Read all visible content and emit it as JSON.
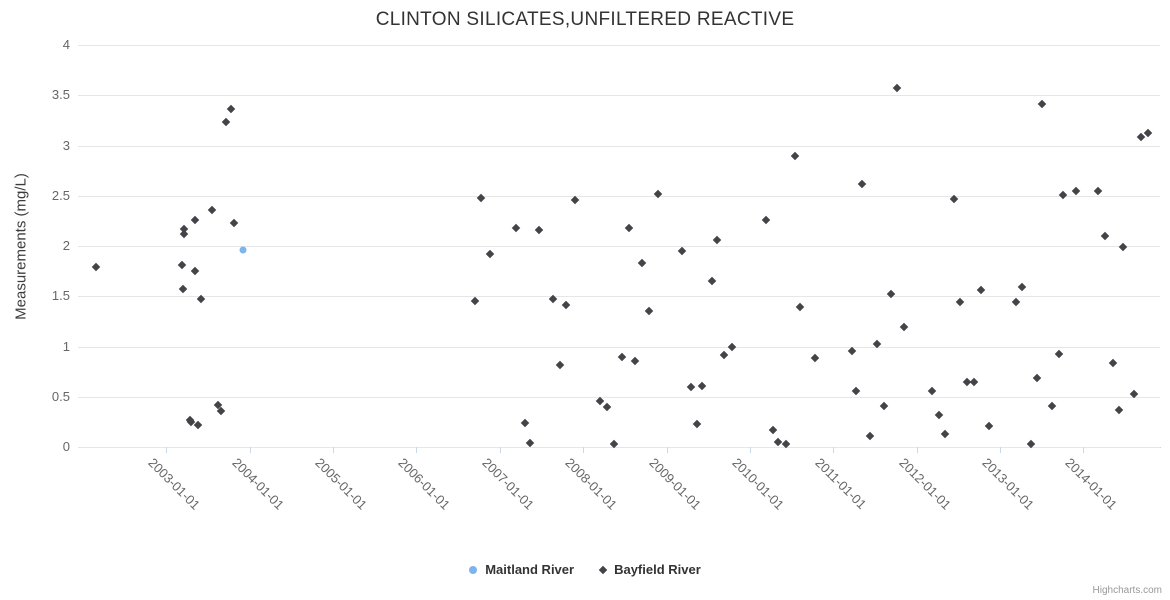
{
  "credit": "Highcharts.com",
  "colors": {
    "background": "#ffffff",
    "title_text": "#333333",
    "axis_title_text": "#3c3c3c",
    "tick_label_text": "#666666",
    "gridline": "#e6e6e6",
    "axis_line": "#ccd6eb",
    "legend_text": "#333333",
    "credit_text": "#999999",
    "maitland_series": "#7cb5ec",
    "bayfield_series": "#434348"
  },
  "chart_data": {
    "type": "scatter",
    "title": "CLINTON SILICATES,UNFILTERED REACTIVE",
    "xlabel": "",
    "ylabel": "Measurements (mg/L)",
    "grid": "horizontal",
    "legend_position": "bottom-center",
    "x_axis": {
      "type": "date",
      "units": "decimal_year",
      "min": 2001.94,
      "max": 2014.92,
      "tick_positions": [
        2003,
        2004,
        2005,
        2006,
        2007,
        2008,
        2009,
        2010,
        2011,
        2012,
        2013,
        2014
      ],
      "tick_labels": [
        "2003-01-01",
        "2004-01-01",
        "2005-01-01",
        "2006-01-01",
        "2007-01-01",
        "2008-01-01",
        "2009-01-01",
        "2010-01-01",
        "2011-01-01",
        "2012-01-01",
        "2013-01-01",
        "2014-01-01"
      ],
      "label_rotation_deg": 45
    },
    "y_axis": {
      "min": 0,
      "max": 4,
      "tick_values": [
        0,
        0.5,
        1,
        1.5,
        2,
        2.5,
        3,
        3.5,
        4
      ],
      "tick_labels": [
        "0",
        "0.5",
        "1",
        "1.5",
        "2",
        "2.5",
        "3",
        "3.5",
        "4"
      ]
    },
    "series": [
      {
        "name": "Maitland River",
        "color": "#7cb5ec",
        "marker": "circle",
        "points": [
          [
            2003.92,
            1.96
          ]
        ]
      },
      {
        "name": "Bayfield River",
        "color": "#434348",
        "marker": "diamond",
        "points": [
          [
            2002.15,
            1.79
          ],
          [
            2003.19,
            1.81
          ],
          [
            2003.2,
            1.57
          ],
          [
            2003.21,
            2.17
          ],
          [
            2003.21,
            2.12
          ],
          [
            2003.28,
            0.27
          ],
          [
            2003.3,
            0.25
          ],
          [
            2003.34,
            2.26
          ],
          [
            2003.34,
            1.75
          ],
          [
            2003.38,
            0.22
          ],
          [
            2003.42,
            1.47
          ],
          [
            2003.55,
            2.36
          ],
          [
            2003.62,
            0.42
          ],
          [
            2003.66,
            0.36
          ],
          [
            2003.72,
            3.23
          ],
          [
            2003.78,
            3.36
          ],
          [
            2003.81,
            2.23
          ],
          [
            2006.7,
            1.45
          ],
          [
            2006.78,
            2.48
          ],
          [
            2006.88,
            1.92
          ],
          [
            2007.2,
            2.18
          ],
          [
            2007.3,
            0.24
          ],
          [
            2007.36,
            0.04
          ],
          [
            2007.47,
            2.16
          ],
          [
            2007.64,
            1.47
          ],
          [
            2007.72,
            0.82
          ],
          [
            2007.79,
            1.41
          ],
          [
            2007.9,
            2.46
          ],
          [
            2008.2,
            0.46
          ],
          [
            2008.29,
            0.4
          ],
          [
            2008.37,
            0.03
          ],
          [
            2008.46,
            0.9
          ],
          [
            2008.55,
            2.18
          ],
          [
            2008.62,
            0.86
          ],
          [
            2008.7,
            1.83
          ],
          [
            2008.79,
            1.35
          ],
          [
            2008.9,
            2.52
          ],
          [
            2009.19,
            1.95
          ],
          [
            2009.29,
            0.6
          ],
          [
            2009.36,
            0.23
          ],
          [
            2009.43,
            0.61
          ],
          [
            2009.54,
            1.65
          ],
          [
            2009.61,
            2.06
          ],
          [
            2009.69,
            0.92
          ],
          [
            2009.78,
            1.0
          ],
          [
            2010.19,
            2.26
          ],
          [
            2010.28,
            0.17
          ],
          [
            2010.34,
            0.05
          ],
          [
            2010.43,
            0.03
          ],
          [
            2010.54,
            2.9
          ],
          [
            2010.6,
            1.39
          ],
          [
            2010.78,
            0.89
          ],
          [
            2011.22,
            0.96
          ],
          [
            2011.27,
            0.56
          ],
          [
            2011.34,
            2.62
          ],
          [
            2011.44,
            0.11
          ],
          [
            2011.53,
            1.02
          ],
          [
            2011.61,
            0.41
          ],
          [
            2011.69,
            1.52
          ],
          [
            2011.76,
            3.57
          ],
          [
            2011.85,
            1.19
          ],
          [
            2012.19,
            0.56
          ],
          [
            2012.27,
            0.32
          ],
          [
            2012.34,
            0.13
          ],
          [
            2012.45,
            2.47
          ],
          [
            2012.52,
            1.44
          ],
          [
            2012.6,
            0.65
          ],
          [
            2012.69,
            0.65
          ],
          [
            2012.77,
            1.56
          ],
          [
            2012.87,
            0.21
          ],
          [
            2013.19,
            1.44
          ],
          [
            2013.27,
            1.59
          ],
          [
            2013.37,
            0.03
          ],
          [
            2013.44,
            0.69
          ],
          [
            2013.5,
            3.41
          ],
          [
            2013.62,
            0.41
          ],
          [
            2013.71,
            0.93
          ],
          [
            2013.76,
            2.51
          ],
          [
            2013.91,
            2.55
          ],
          [
            2014.18,
            2.55
          ],
          [
            2014.26,
            2.1
          ],
          [
            2014.36,
            0.84
          ],
          [
            2014.43,
            0.37
          ],
          [
            2014.48,
            1.99
          ],
          [
            2014.61,
            0.53
          ],
          [
            2014.69,
            3.08
          ],
          [
            2014.78,
            3.12
          ]
        ]
      }
    ]
  }
}
